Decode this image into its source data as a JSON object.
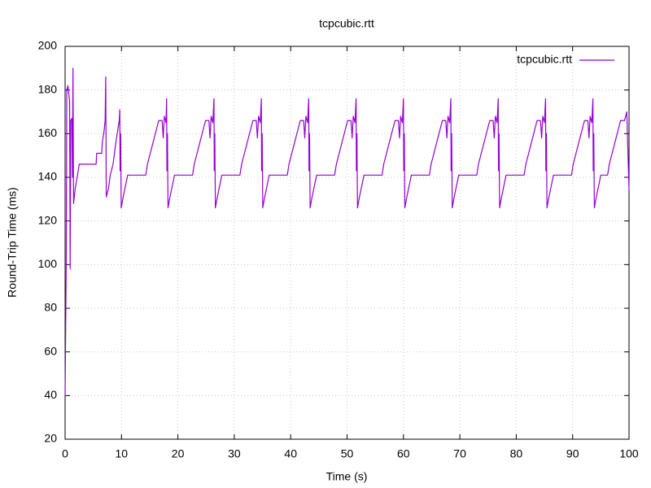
{
  "chart_data": {
    "type": "line",
    "title": "tcpcubic.rtt",
    "xlabel": "Time (s)",
    "ylabel": "Round-Trip Time (ms)",
    "xlim": [
      0,
      100
    ],
    "xticks": [
      0,
      10,
      20,
      30,
      40,
      50,
      60,
      70,
      80,
      90,
      100
    ],
    "ylim": [
      20,
      200
    ],
    "yticks": [
      20,
      40,
      60,
      80,
      100,
      120,
      140,
      160,
      180,
      200
    ],
    "grid": true,
    "legend": "top-right",
    "x": [
      0,
      0.2,
      0.3,
      0.5,
      0.8,
      0.9,
      1.0,
      1.2,
      1.3,
      1.4,
      1.5,
      1.8,
      2.2,
      2.5,
      5.5,
      5.6,
      6.5,
      6.6,
      6.9,
      7.1,
      7.2,
      7.3,
      7.7,
      8.0,
      8.5,
      9.0,
      9.3,
      9.6,
      9.7,
      9.75,
      9.85,
      9.95,
      10.3,
      10.7,
      11.1,
      14.3,
      14.6,
      15.1,
      15.6,
      16.1,
      16.6,
      17.2,
      17.4,
      17.6,
      17.9,
      18.0,
      18.05,
      18.15,
      18.25,
      18.6,
      19.0,
      19.4,
      22.6,
      22.9,
      23.4,
      23.9,
      24.4,
      24.9,
      25.5,
      25.7,
      25.9,
      26.2,
      26.4,
      26.45,
      26.55,
      26.65,
      27.0,
      27.4,
      27.8,
      31.0,
      31.3,
      31.8,
      32.3,
      32.8,
      33.3,
      33.9,
      34.1,
      34.3,
      34.6,
      34.8,
      34.85,
      34.95,
      35.05,
      35.4,
      35.8,
      36.2,
      39.4,
      39.7,
      40.2,
      40.7,
      41.2,
      41.7,
      42.3,
      42.5,
      42.7,
      43.0,
      43.2,
      43.25,
      43.35,
      43.45,
      43.8,
      44.2,
      44.6,
      47.8,
      48.1,
      48.6,
      49.1,
      49.6,
      50.1,
      50.7,
      50.9,
      51.1,
      51.4,
      51.6,
      51.65,
      51.75,
      51.85,
      52.2,
      52.6,
      53.0,
      56.2,
      56.5,
      57.0,
      57.5,
      58.0,
      58.5,
      59.1,
      59.3,
      59.5,
      59.8,
      60.0,
      60.05,
      60.15,
      60.25,
      60.6,
      61.0,
      61.4,
      64.6,
      64.9,
      65.4,
      65.9,
      66.4,
      66.9,
      67.5,
      67.7,
      67.9,
      68.2,
      68.4,
      68.45,
      68.55,
      68.65,
      69.0,
      69.4,
      69.8,
      73.0,
      73.3,
      73.8,
      74.3,
      74.8,
      75.3,
      75.9,
      76.1,
      76.3,
      76.6,
      76.8,
      76.85,
      76.95,
      77.05,
      77.4,
      77.8,
      78.2,
      81.4,
      81.7,
      82.2,
      82.7,
      83.2,
      83.7,
      84.3,
      84.5,
      84.7,
      85.0,
      85.2,
      85.25,
      85.35,
      85.45,
      85.8,
      86.2,
      86.6,
      89.8,
      90.1,
      90.6,
      91.1,
      91.6,
      92.1,
      92.7,
      92.9,
      93.1,
      93.4,
      93.6,
      93.65,
      93.75,
      93.85,
      94.2,
      94.6,
      95.0,
      96.2,
      96.5,
      97.0,
      97.5,
      98.0,
      98.5,
      99.2,
      99.6,
      100
    ],
    "series": [
      {
        "name": "tcpcubic.rtt",
        "color": "#9400d3",
        "values": [
          40,
          100,
          180,
          182,
          175,
          98,
          166,
          167,
          140,
          190,
          128,
          135,
          141,
          146,
          146,
          151,
          151,
          156,
          161,
          166,
          186,
          131,
          135,
          141,
          146,
          156,
          161,
          166,
          171,
          143,
          160,
          126,
          131,
          136,
          141,
          141,
          146,
          151,
          156,
          161,
          166,
          166,
          158,
          168,
          165,
          176,
          143,
          160,
          126,
          131,
          136,
          141,
          141,
          146,
          151,
          156,
          161,
          166,
          166,
          158,
          168,
          165,
          176,
          143,
          160,
          126,
          131,
          136,
          141,
          141,
          146,
          151,
          156,
          161,
          166,
          166,
          158,
          168,
          165,
          176,
          143,
          160,
          126,
          131,
          136,
          141,
          141,
          146,
          151,
          156,
          161,
          166,
          166,
          158,
          168,
          165,
          176,
          143,
          160,
          126,
          131,
          136,
          141,
          141,
          146,
          151,
          156,
          161,
          166,
          166,
          158,
          168,
          165,
          176,
          143,
          160,
          126,
          131,
          136,
          141,
          141,
          146,
          151,
          156,
          161,
          166,
          166,
          158,
          168,
          165,
          176,
          143,
          160,
          126,
          131,
          136,
          141,
          141,
          146,
          151,
          156,
          161,
          166,
          166,
          158,
          168,
          165,
          176,
          143,
          160,
          126,
          131,
          136,
          141,
          141,
          146,
          151,
          156,
          161,
          166,
          166,
          158,
          168,
          165,
          176,
          143,
          160,
          126,
          131,
          136,
          141,
          141,
          146,
          151,
          156,
          161,
          166,
          166,
          158,
          168,
          165,
          176,
          143,
          160,
          126,
          131,
          136,
          141,
          141,
          146,
          151,
          156,
          161,
          166,
          166,
          158,
          168,
          165,
          176,
          143,
          160,
          126,
          131,
          136,
          141,
          141,
          146,
          151,
          156,
          161,
          166,
          166,
          170,
          134
        ]
      }
    ]
  }
}
